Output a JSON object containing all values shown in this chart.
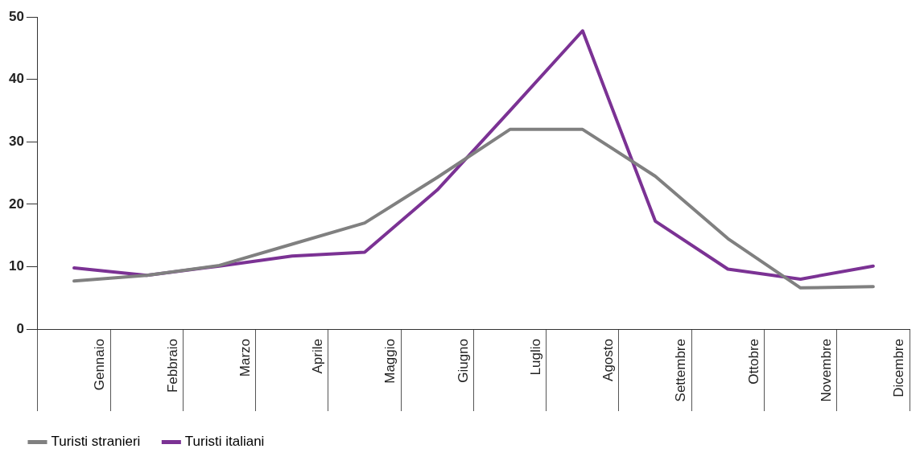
{
  "chart_data": {
    "type": "line",
    "categories": [
      "Gennaio",
      "Febbraio",
      "Marzo",
      "Aprile",
      "Maggio",
      "Giugno",
      "Luglio",
      "Agosto",
      "Settembre",
      "Ottobre",
      "Novembre",
      "Dicembre"
    ],
    "series": [
      {
        "name": "Turisti stranieri",
        "color": "#808080",
        "values": [
          7.7,
          8.6,
          10.2,
          13.6,
          17,
          24.3,
          32,
          32,
          24.5,
          14.5,
          6.6,
          6.8
        ]
      },
      {
        "name": "Turisti italiani",
        "color": "#7b3294",
        "values": [
          9.8,
          8.6,
          10.1,
          11.7,
          12.3,
          22.3,
          35,
          47.8,
          17.3,
          9.6,
          8,
          10.1
        ]
      }
    ],
    "ylim": [
      0,
      50
    ],
    "yticks": [
      0,
      10,
      20,
      30,
      40,
      50
    ],
    "grid": false,
    "legend": "bottom left",
    "marker": "none",
    "line_style": "solid"
  }
}
